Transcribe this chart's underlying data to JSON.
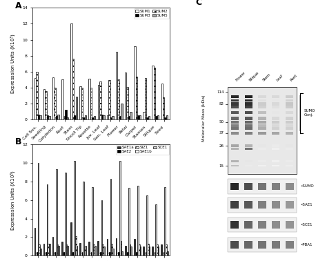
{
  "categories": [
    "Cell Sus.",
    "Seedling",
    "Cotyledon",
    "Root",
    "Stem",
    "Shoot Tip",
    "Rosette",
    "Juv. Leaf",
    "Sen. Leaf",
    "Flower",
    "Petal",
    "Carpel",
    "Stamen",
    "Silique",
    "Seed"
  ],
  "panel_A": {
    "SUM1": [
      5.2,
      3.8,
      5.3,
      5.0,
      12.0,
      4.2,
      5.1,
      4.3,
      0.5,
      8.5,
      5.9,
      9.2,
      1.0,
      6.8,
      4.5
    ],
    "SUM2": [
      6.0,
      3.6,
      4.0,
      0.4,
      7.6,
      4.0,
      4.0,
      4.8,
      4.9,
      5.0,
      4.1,
      5.4,
      5.2,
      6.5,
      2.8
    ],
    "SUM3": [
      0.6,
      0.5,
      0.4,
      1.2,
      0.5,
      0.3,
      0.3,
      0.6,
      0.3,
      0.4,
      0.4,
      0.5,
      0.3,
      0.4,
      0.3
    ],
    "SUM5": [
      0.5,
      0.4,
      0.6,
      0.3,
      2.9,
      0.5,
      0.4,
      0.5,
      0.4,
      2.0,
      1.0,
      0.5,
      0.4,
      0.5,
      0.5
    ]
  },
  "panel_B": {
    "SAE1a": [
      3.0,
      1.3,
      2.0,
      1.5,
      3.6,
      1.4,
      1.5,
      1.6,
      1.8,
      1.9,
      1.1,
      1.8,
      1.0,
      1.0,
      1.2
    ],
    "SAE1b": [
      0.3,
      0.3,
      0.3,
      0.3,
      0.3,
      0.3,
      0.3,
      0.3,
      0.3,
      0.3,
      0.3,
      0.3,
      0.3,
      0.3,
      0.3
    ],
    "SAE2": [
      0.4,
      0.4,
      0.4,
      0.4,
      0.4,
      0.4,
      0.4,
      0.4,
      0.4,
      0.4,
      0.4,
      0.4,
      0.4,
      0.4,
      0.4
    ],
    "SCE1": [
      0.8,
      1.3,
      1.1,
      1.1,
      1.1,
      1.1,
      1.1,
      1.0,
      0.8,
      0.5,
      1.0,
      1.0,
      1.0,
      1.0,
      0.5
    ],
    "SIZ1": [
      1.2,
      1.3,
      1.2,
      1.2,
      2.1,
      1.0,
      1.2,
      1.2,
      1.3,
      1.6,
      1.2,
      1.2,
      1.3,
      1.2,
      1.2
    ],
    "SCE1_light": [
      10.0,
      7.7,
      9.3,
      8.9,
      10.2,
      8.0,
      7.4,
      6.0,
      8.3,
      10.2,
      7.3,
      7.5,
      6.5,
      5.5,
      7.4
    ]
  },
  "mw_labels": [
    "114",
    "82",
    "50",
    "37",
    "26",
    "15"
  ],
  "western_col_labels": [
    "Flower",
    "Silique",
    "Stem",
    "Leaf",
    "Root"
  ]
}
